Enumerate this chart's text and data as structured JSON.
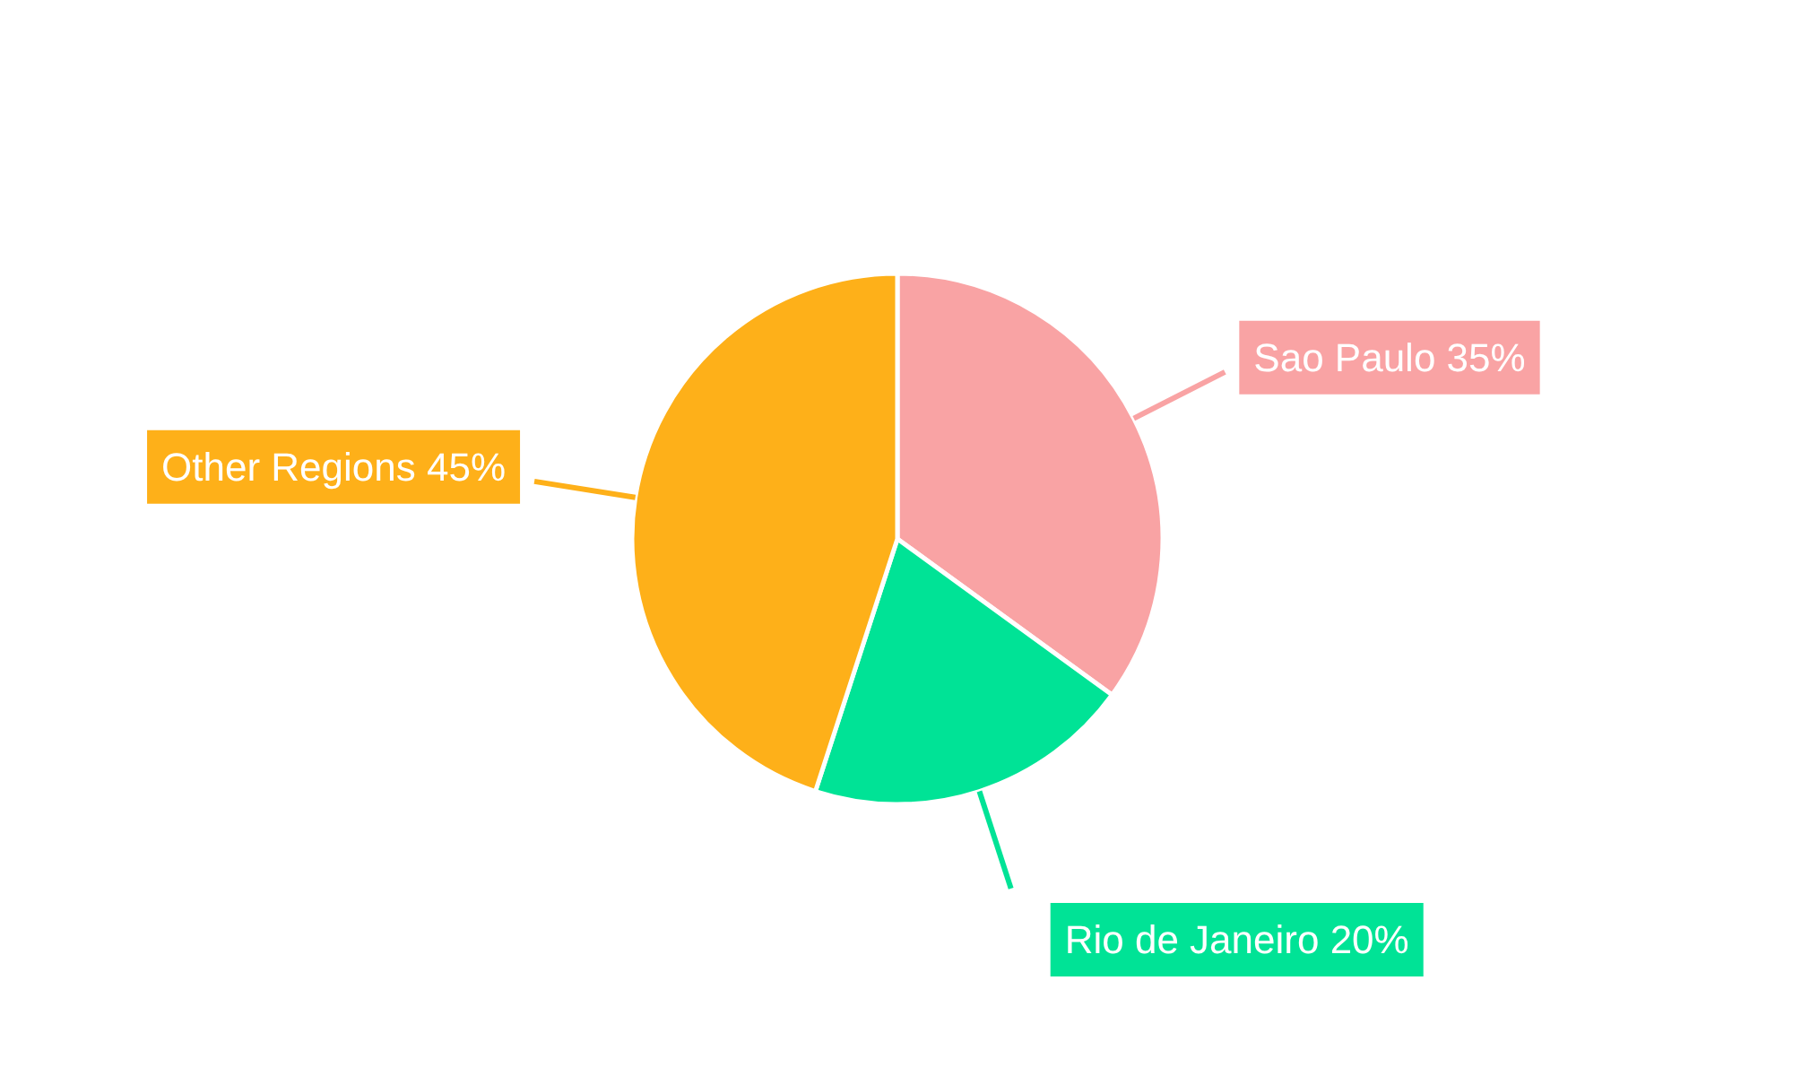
{
  "chart_data": {
    "type": "pie",
    "categories": [
      "Sao Paulo",
      "Rio de Janeiro",
      "Other Regions"
    ],
    "values": [
      35,
      20,
      45
    ],
    "value_labels": [
      "35%",
      "20%",
      "45%"
    ],
    "colors": [
      "#f9a3a4",
      "#00e396",
      "#feb019"
    ]
  }
}
